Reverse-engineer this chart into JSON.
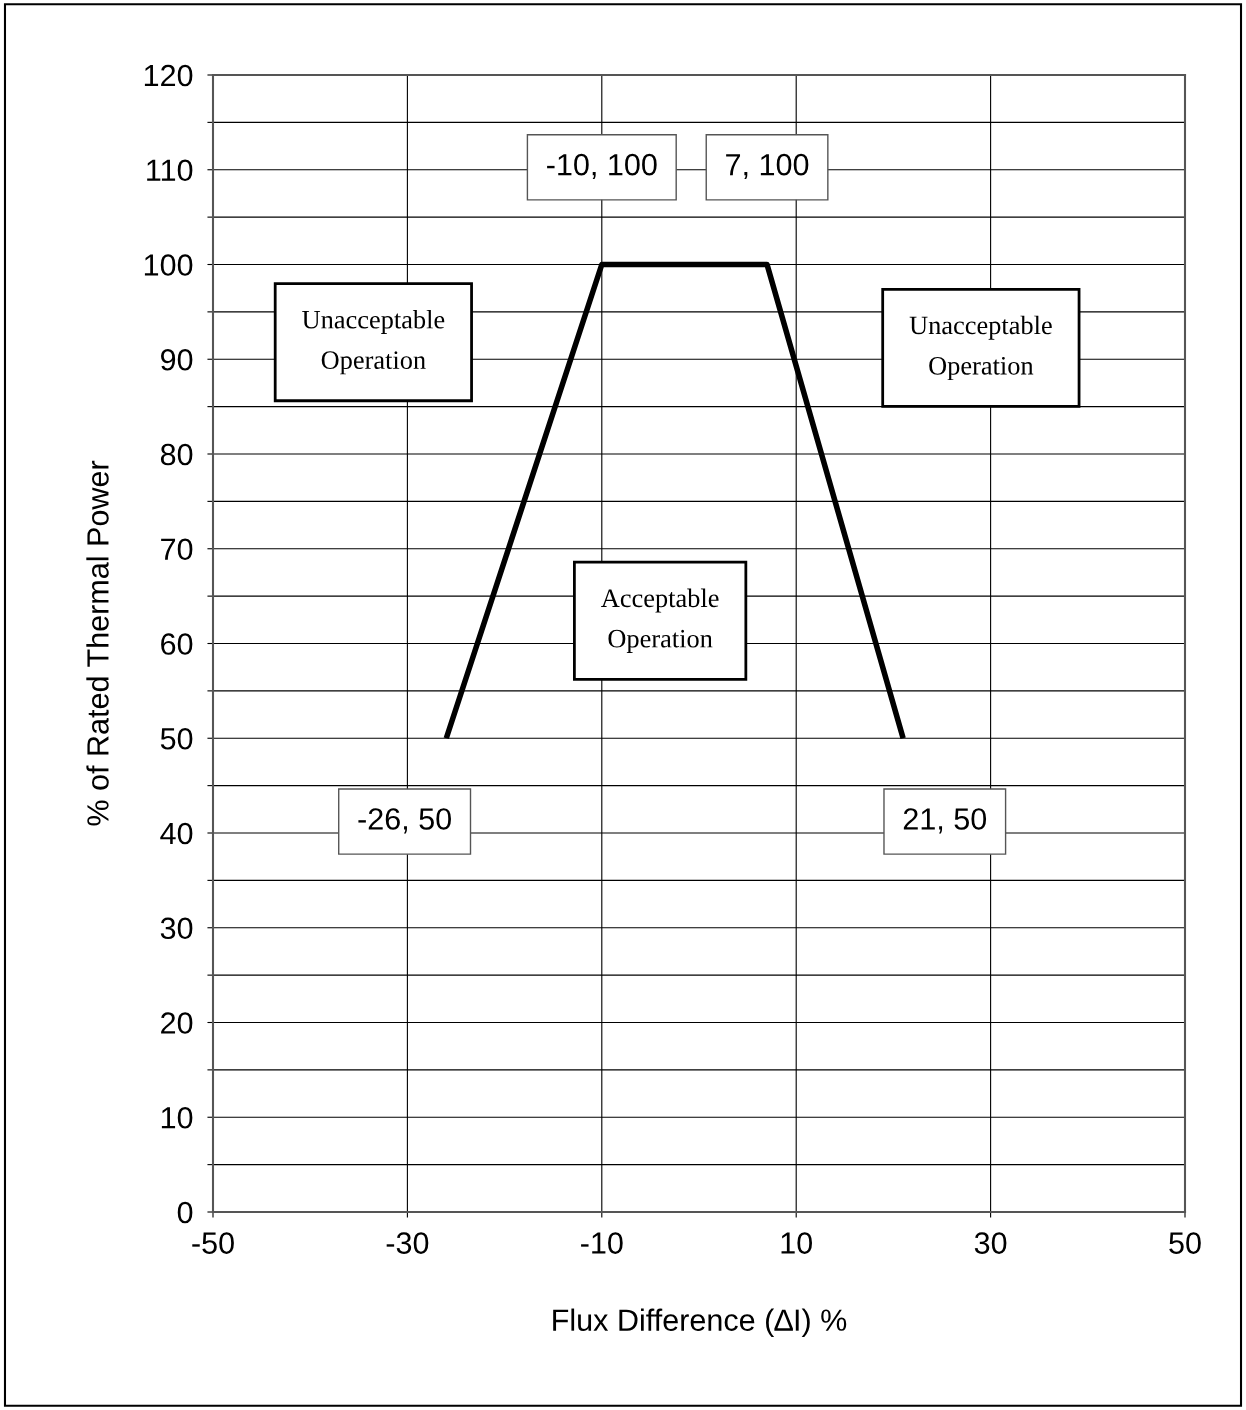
{
  "chart_data": {
    "type": "line",
    "xlabel": "Flux Difference (∆I) %",
    "ylabel": "% of Rated Thermal Power",
    "x": [
      -26,
      -10,
      7,
      21
    ],
    "series": [
      {
        "color": "#000000",
        "values": [
          50,
          100,
          100,
          50
        ]
      }
    ],
    "xlim": [
      -50,
      50
    ],
    "xticks": [
      -50,
      -30,
      -10,
      10,
      30,
      50
    ],
    "ylim": [
      0,
      120
    ],
    "yticks": [
      0,
      {
        "value": 5,
        "label": null
      },
      10,
      {
        "value": 15,
        "label": null
      },
      20,
      {
        "value": 25,
        "label": null
      },
      30,
      {
        "value": 35,
        "label": null
      },
      40,
      {
        "value": 45,
        "label": null
      },
      50,
      {
        "value": 55,
        "label": null
      },
      60,
      {
        "value": 65,
        "label": null
      },
      70,
      {
        "value": 75,
        "label": null
      },
      80,
      {
        "value": 85,
        "label": null
      },
      90,
      {
        "value": 95,
        "label": null
      },
      100,
      {
        "value": 105,
        "label": null
      },
      110,
      {
        "value": 115,
        "label": null
      },
      120
    ],
    "grid": true,
    "marker": "none",
    "line_style": "solid",
    "legend": false,
    "annotations": [
      {
        "text": "-10, 100",
        "x": -10,
        "y": 100
      },
      {
        "text": "7, 100",
        "x": 7,
        "y": 100
      },
      {
        "text": "-26, 50",
        "x": -26,
        "y": 50
      },
      {
        "text": "21, 50",
        "x": 21,
        "y": 50
      },
      "Unacceptable\nOperation",
      "Unacceptable\nOperation",
      "Acceptable\nOperation"
    ]
  }
}
